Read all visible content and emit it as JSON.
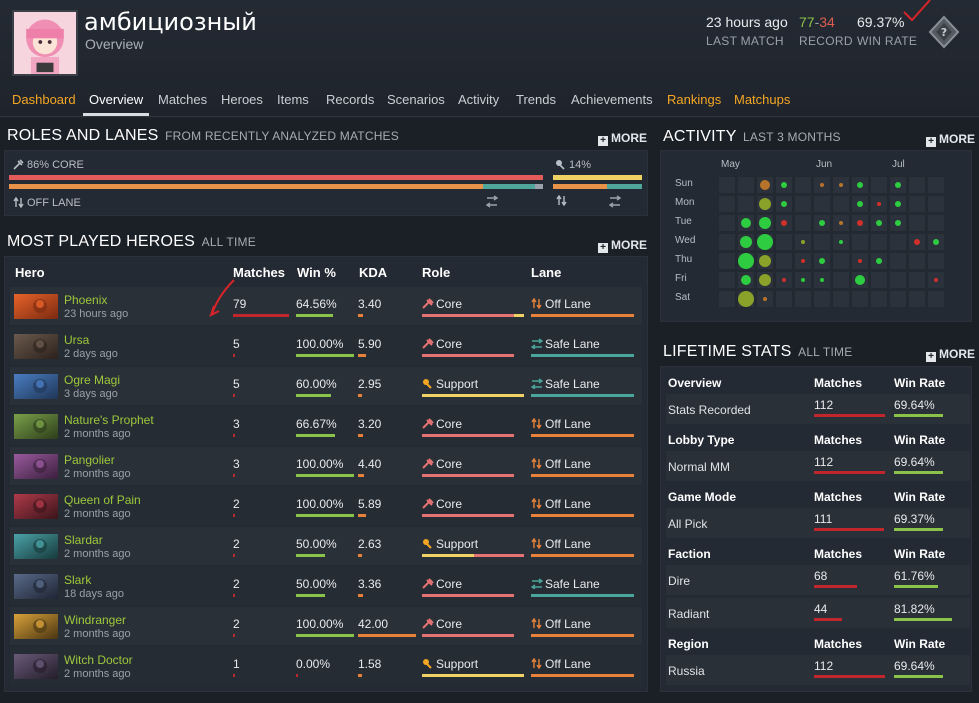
{
  "profile": {
    "name": "амбициозный",
    "subtitle": "Overview",
    "last_match_value": "23 hours ago",
    "last_match_label": "LAST MATCH",
    "record_wins": "77",
    "record_sep": "-",
    "record_losses": "34",
    "record_label": "RECORD",
    "win_rate_value": "69.37%",
    "win_rate_label": "WIN RATE",
    "badge_glyph": "?"
  },
  "nav": [
    {
      "label": "Dashboard",
      "state": "gold"
    },
    {
      "label": "Overview",
      "state": "active"
    },
    {
      "label": "Matches",
      "state": ""
    },
    {
      "label": "Heroes",
      "state": ""
    },
    {
      "label": "Items",
      "state": ""
    },
    {
      "label": "Records",
      "state": ""
    },
    {
      "label": "Scenarios",
      "state": ""
    },
    {
      "label": "Activity",
      "state": ""
    },
    {
      "label": "Trends",
      "state": ""
    },
    {
      "label": "Achievements",
      "state": ""
    },
    {
      "label": "Rankings",
      "state": "gold"
    },
    {
      "label": "Matchups",
      "state": "gold"
    }
  ],
  "roles": {
    "title": "ROLES AND LANES",
    "subtitle": "FROM RECENTLY ANALYZED MATCHES",
    "more": "MORE",
    "core_label": "86% CORE",
    "support_label": "14%",
    "lane_label": "OFF LANE",
    "core_fraction": 0.86,
    "offlane_fraction": 0.84
  },
  "heroes": {
    "title": "MOST PLAYED HEROES",
    "subtitle": "ALL TIME",
    "more": "MORE",
    "columns": {
      "hero": "Hero",
      "matches": "Matches",
      "win": "Win %",
      "kda": "KDA",
      "role": "Role",
      "lane": "Lane"
    },
    "rows": [
      {
        "name": "Phoenix",
        "time": "23 hours ago",
        "matches": "79",
        "matches_frac": 1.0,
        "win": "64.56%",
        "win_frac": 0.6456,
        "kda": "3.40",
        "kda_frac": 0.08,
        "role": "Core",
        "lane": "Off Lane",
        "art": [
          "#e8632a",
          "#7a2a10"
        ]
      },
      {
        "name": "Ursa",
        "time": "2 days ago",
        "matches": "5",
        "matches_frac": 0.04,
        "win": "100.00%",
        "win_frac": 1.0,
        "kda": "5.90",
        "kda_frac": 0.14,
        "role": "Core",
        "lane": "Safe Lane",
        "art": [
          "#6b5a4e",
          "#2b211b"
        ]
      },
      {
        "name": "Ogre Magi",
        "time": "3 days ago",
        "matches": "5",
        "matches_frac": 0.04,
        "win": "60.00%",
        "win_frac": 0.6,
        "kda": "2.95",
        "kda_frac": 0.07,
        "role": "Support",
        "lane": "Safe Lane",
        "art": [
          "#4a7ec2",
          "#1f3557"
        ]
      },
      {
        "name": "Nature's Prophet",
        "time": "2 months ago",
        "matches": "3",
        "matches_frac": 0.03,
        "win": "66.67%",
        "win_frac": 0.6667,
        "kda": "3.20",
        "kda_frac": 0.08,
        "role": "Core",
        "lane": "Off Lane",
        "art": [
          "#7aa14a",
          "#2d3d1b"
        ]
      },
      {
        "name": "Pangolier",
        "time": "2 months ago",
        "matches": "3",
        "matches_frac": 0.03,
        "win": "100.00%",
        "win_frac": 1.0,
        "kda": "4.40",
        "kda_frac": 0.1,
        "role": "Core",
        "lane": "Off Lane",
        "art": [
          "#9a5a9e",
          "#3a1f3c"
        ]
      },
      {
        "name": "Queen of Pain",
        "time": "2 months ago",
        "matches": "2",
        "matches_frac": 0.02,
        "win": "100.00%",
        "win_frac": 1.0,
        "kda": "5.89",
        "kda_frac": 0.14,
        "role": "Core",
        "lane": "Off Lane",
        "art": [
          "#b03a4a",
          "#3a141a"
        ]
      },
      {
        "name": "Slardar",
        "time": "2 months ago",
        "matches": "2",
        "matches_frac": 0.02,
        "win": "50.00%",
        "win_frac": 0.5,
        "kda": "2.63",
        "kda_frac": 0.06,
        "role": "Support",
        "lane": "Off Lane",
        "art": [
          "#4aa3a8",
          "#17393b"
        ]
      },
      {
        "name": "Slark",
        "time": "18 days ago",
        "matches": "2",
        "matches_frac": 0.02,
        "win": "50.00%",
        "win_frac": 0.5,
        "kda": "3.36",
        "kda_frac": 0.08,
        "role": "Core",
        "lane": "Safe Lane",
        "art": [
          "#5a6a8a",
          "#1e2433"
        ]
      },
      {
        "name": "Windranger",
        "time": "2 months ago",
        "matches": "2",
        "matches_frac": 0.02,
        "win": "100.00%",
        "win_frac": 1.0,
        "kda": "42.00",
        "kda_frac": 1.0,
        "role": "Core",
        "lane": "Off Lane",
        "art": [
          "#d9a23a",
          "#4a3512"
        ]
      },
      {
        "name": "Witch Doctor",
        "time": "2 months ago",
        "matches": "1",
        "matches_frac": 0.01,
        "win": "0.00%",
        "win_frac": 0.0,
        "kda": "1.58",
        "kda_frac": 0.04,
        "role": "Support",
        "lane": "Off Lane",
        "art": [
          "#6a5a7a",
          "#231d29"
        ]
      }
    ]
  },
  "activity": {
    "title": "ACTIVITY",
    "subtitle": "LAST 3 MONTHS",
    "more": "MORE",
    "months": [
      "May",
      "Jun",
      "Jul"
    ],
    "days": [
      "Sun",
      "Mon",
      "Tue",
      "Wed",
      "Thu",
      "Fri",
      "Sat"
    ],
    "dots": [
      [
        0,
        6,
        4,
        "#b8732a"
      ],
      [
        0,
        7,
        2,
        "#2ecc40"
      ],
      [
        0,
        9,
        1,
        "#b8732a"
      ],
      [
        0,
        10,
        1,
        "#b8732a"
      ],
      [
        0,
        11,
        2,
        "#2ecc40"
      ],
      [
        0,
        13,
        2,
        "#2ecc40"
      ],
      [
        1,
        6,
        5,
        "#8aa22a"
      ],
      [
        1,
        7,
        2,
        "#2ecc40"
      ],
      [
        1,
        11,
        2,
        "#2ecc40"
      ],
      [
        1,
        12,
        1,
        "#d0302a"
      ],
      [
        1,
        13,
        2,
        "#2ecc40"
      ],
      [
        2,
        5,
        4,
        "#2ecc40"
      ],
      [
        2,
        6,
        5,
        "#2ecc40"
      ],
      [
        2,
        7,
        2,
        "#d0302a"
      ],
      [
        2,
        9,
        2,
        "#2ecc40"
      ],
      [
        2,
        10,
        1,
        "#b8732a"
      ],
      [
        2,
        11,
        2,
        "#d0302a"
      ],
      [
        2,
        12,
        2,
        "#2ecc40"
      ],
      [
        2,
        13,
        2,
        "#2ecc40"
      ],
      [
        3,
        5,
        5,
        "#2ecc40"
      ],
      [
        3,
        6,
        7,
        "#2ecc40"
      ],
      [
        3,
        8,
        1,
        "#8aa22a"
      ],
      [
        3,
        10,
        1,
        "#2ecc40"
      ],
      [
        3,
        14,
        2,
        "#d0302a"
      ],
      [
        3,
        15,
        2,
        "#2ecc40"
      ],
      [
        4,
        5,
        7,
        "#2ecc40"
      ],
      [
        4,
        6,
        5,
        "#8aa22a"
      ],
      [
        4,
        8,
        1,
        "#d0302a"
      ],
      [
        4,
        9,
        2,
        "#2ecc40"
      ],
      [
        4,
        11,
        1,
        "#d0302a"
      ],
      [
        4,
        12,
        2,
        "#2ecc40"
      ],
      [
        5,
        5,
        4,
        "#2ecc40"
      ],
      [
        5,
        6,
        5,
        "#8aa22a"
      ],
      [
        5,
        7,
        1,
        "#d0302a"
      ],
      [
        5,
        8,
        1,
        "#2ecc40"
      ],
      [
        5,
        9,
        1,
        "#2ecc40"
      ],
      [
        5,
        11,
        4,
        "#2ecc40"
      ],
      [
        5,
        15,
        1,
        "#d0302a"
      ],
      [
        6,
        5,
        7,
        "#8aa22a"
      ],
      [
        6,
        6,
        1,
        "#b8732a"
      ]
    ]
  },
  "lifetime": {
    "title": "LIFETIME STATS",
    "subtitle": "ALL TIME",
    "more": "MORE",
    "groups": [
      {
        "header": "Overview",
        "rows": [
          {
            "label": "Stats Recorded",
            "matches": "112",
            "m_frac": 1.0,
            "win": "69.64%",
            "w_frac": 0.6964
          }
        ]
      },
      {
        "header": "Lobby Type",
        "rows": [
          {
            "label": "Normal MM",
            "matches": "112",
            "m_frac": 1.0,
            "win": "69.64%",
            "w_frac": 0.6964
          }
        ]
      },
      {
        "header": "Game Mode",
        "rows": [
          {
            "label": "All Pick",
            "matches": "111",
            "m_frac": 0.99,
            "win": "69.37%",
            "w_frac": 0.6937
          }
        ]
      },
      {
        "header": "Faction",
        "rows": [
          {
            "label": "Dire",
            "matches": "68",
            "m_frac": 0.61,
            "win": "61.76%",
            "w_frac": 0.6176
          },
          {
            "label": "Radiant",
            "matches": "44",
            "m_frac": 0.39,
            "win": "81.82%",
            "w_frac": 0.8182
          }
        ]
      },
      {
        "header": "Region",
        "rows": [
          {
            "label": "Russia",
            "matches": "112",
            "m_frac": 1.0,
            "win": "69.64%",
            "w_frac": 0.6964
          }
        ]
      }
    ],
    "col_matches": "Matches",
    "col_win": "Win Rate"
  },
  "colors": {
    "green": "#8bc34a",
    "red": "#c0262c",
    "orange": "#e8823a",
    "gold": "#f5a623",
    "teal": "#4aa59c",
    "salmon": "#e57373"
  }
}
